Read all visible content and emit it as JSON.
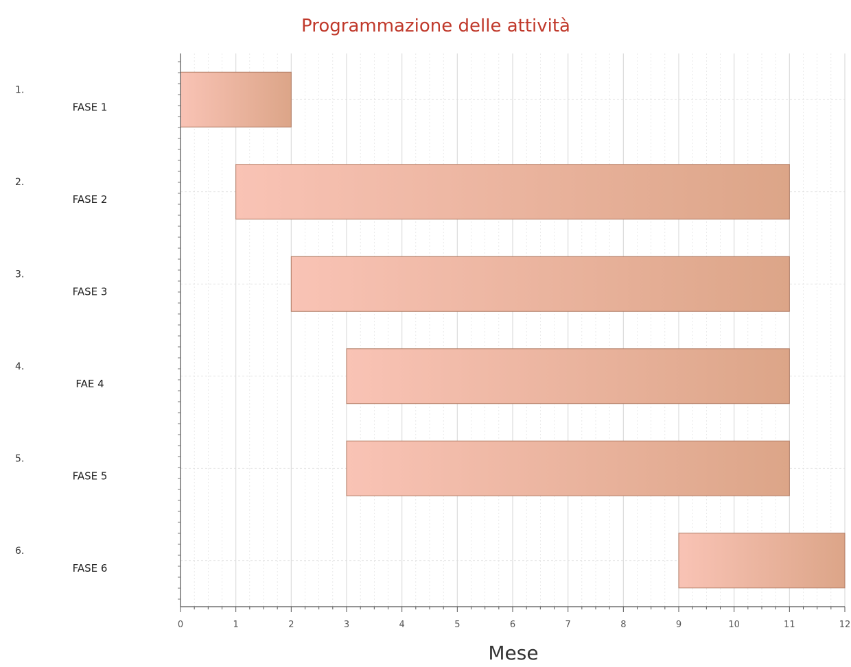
{
  "chart_data": {
    "type": "gantt",
    "title": "Programmazione delle attività",
    "xlabel": "Mese",
    "ylabel": "",
    "xlim": [
      0,
      12
    ],
    "x_ticks": [
      "0",
      "1",
      "2",
      "3",
      "4",
      "5",
      "6",
      "7",
      "8",
      "9",
      "10",
      "11",
      "12"
    ],
    "grid": true,
    "tasks": [
      {
        "number": "1.",
        "name": "FASE 1",
        "start": 0,
        "end": 2
      },
      {
        "number": "2.",
        "name": "FASE 2",
        "start": 1,
        "end": 11
      },
      {
        "number": "3.",
        "name": "FASE 3",
        "start": 2,
        "end": 11
      },
      {
        "number": "4.",
        "name": "FAE 4",
        "start": 3,
        "end": 11
      },
      {
        "number": "5.",
        "name": "FASE 5",
        "start": 3,
        "end": 11
      },
      {
        "number": "6.",
        "name": "FASE 6",
        "start": 9,
        "end": 12
      }
    ],
    "colors": {
      "bar_light": "#f9c3b5",
      "bar_dark": "#dca588",
      "bar_stroke": "#b07a62",
      "grid": "#dcdcdc",
      "axis": "#555555",
      "title": "#c0392b"
    }
  }
}
